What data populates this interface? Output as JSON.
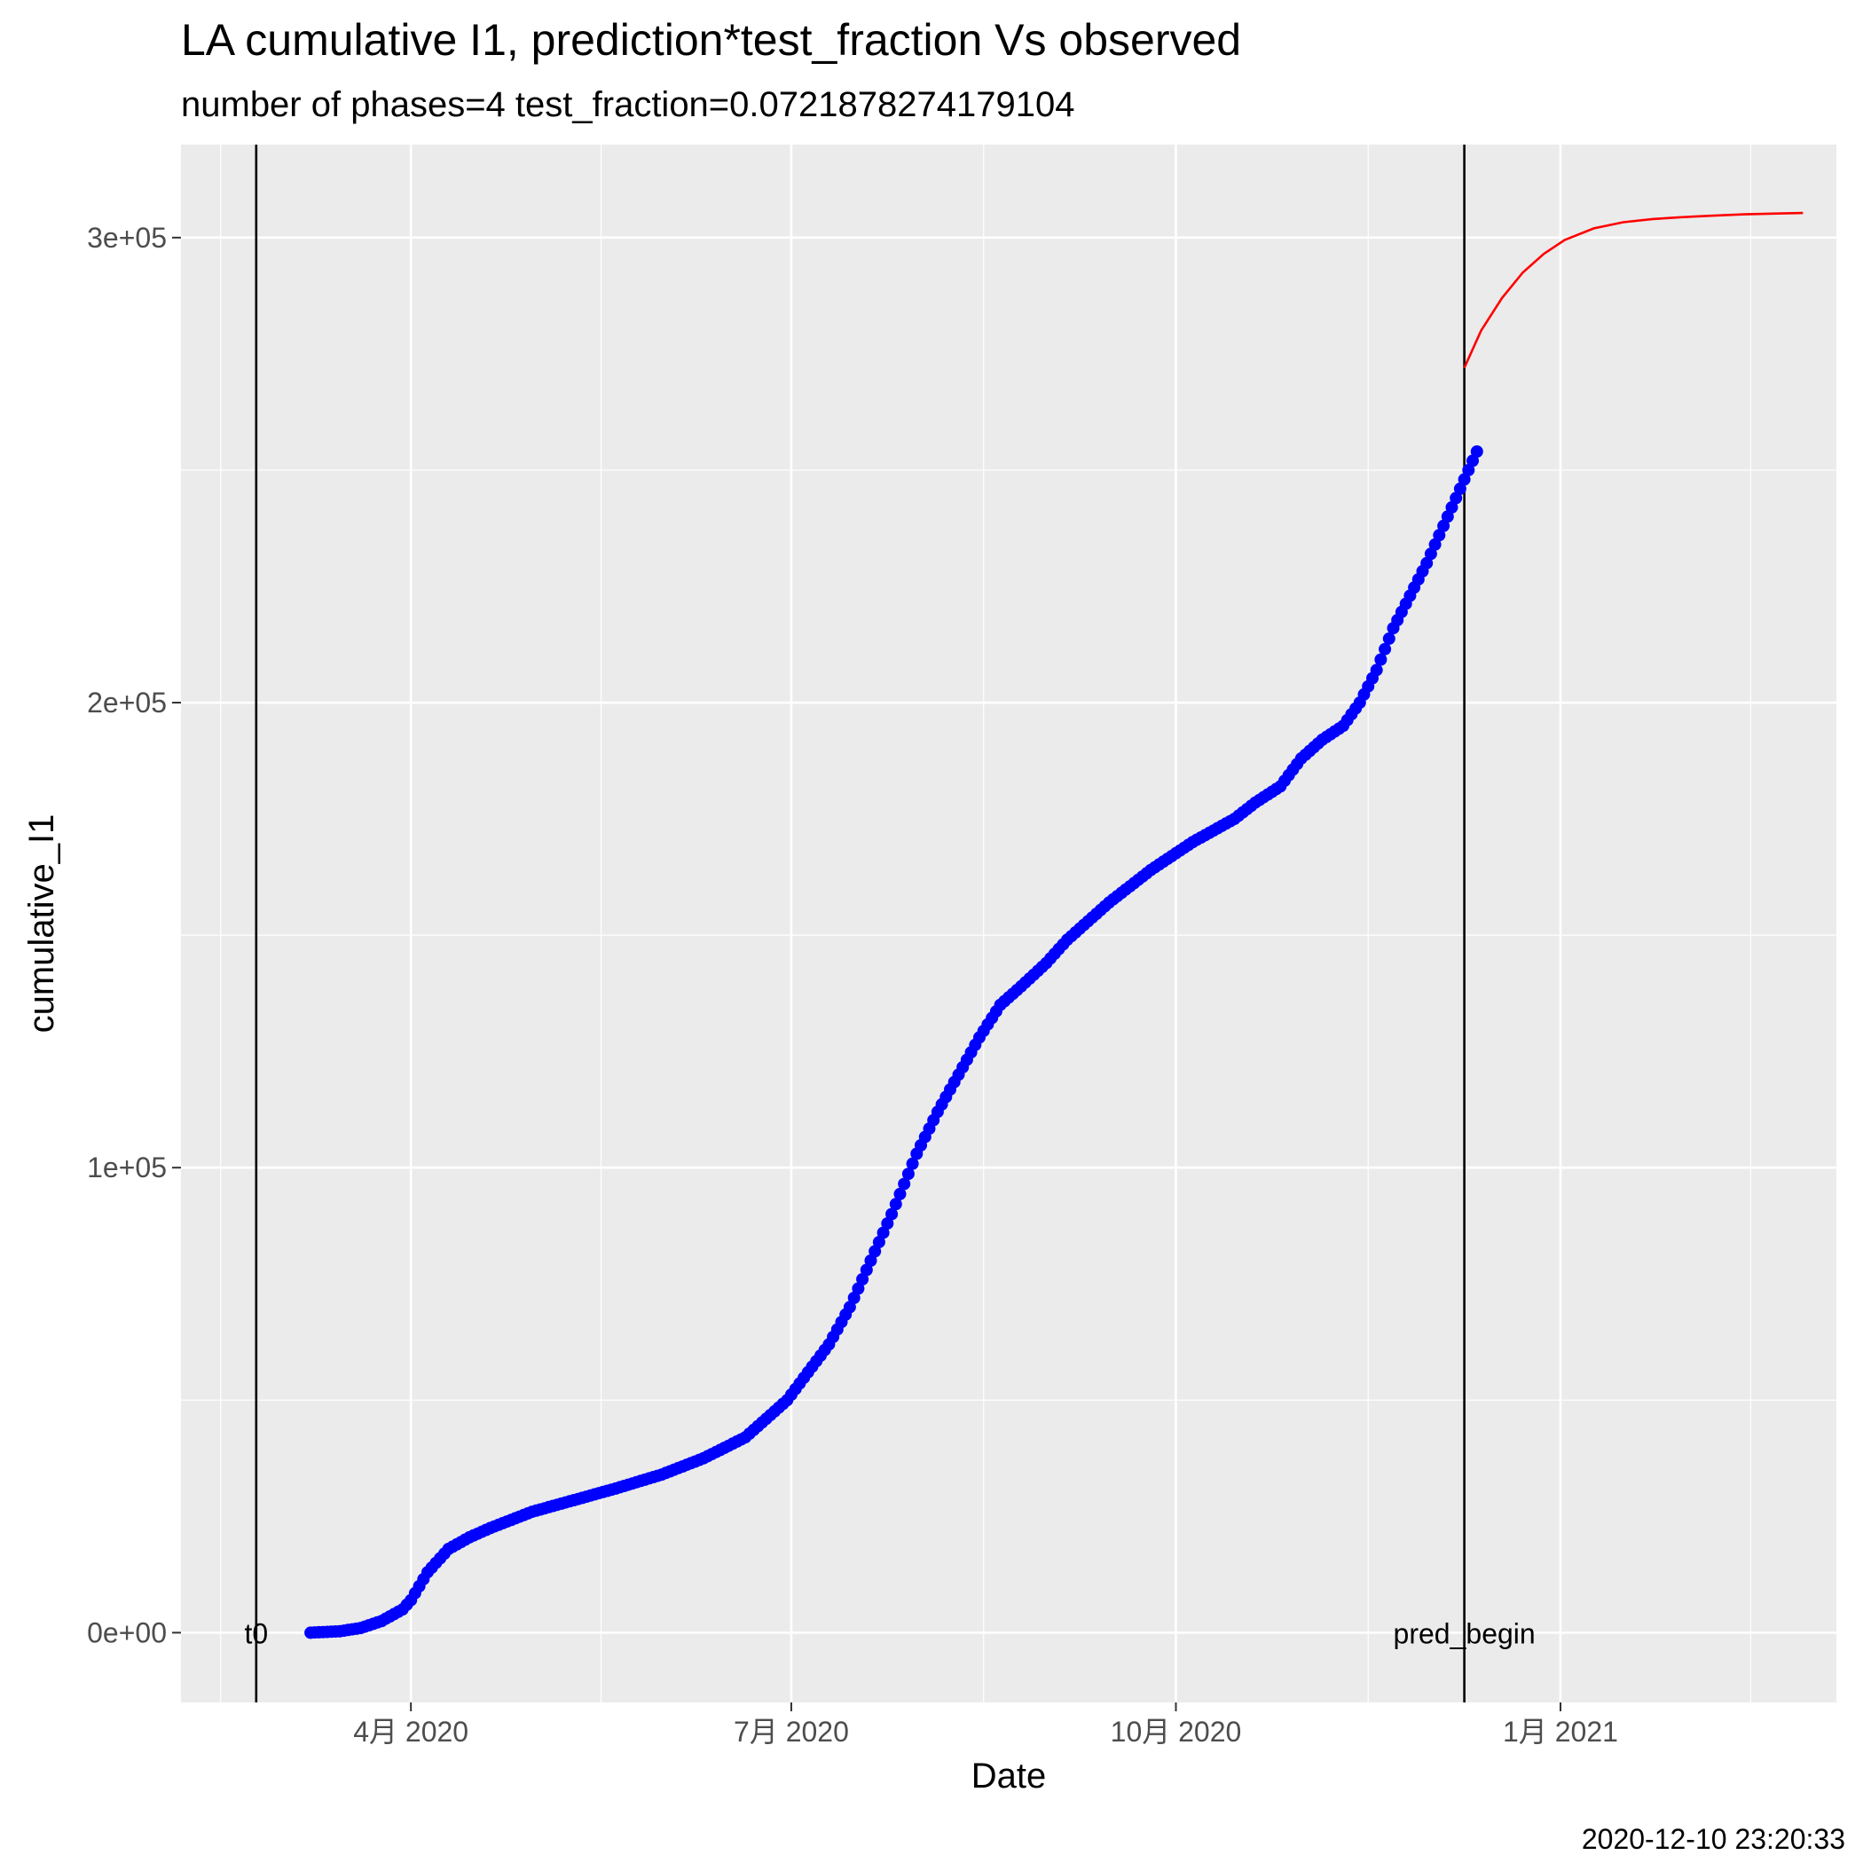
{
  "chart_data": {
    "type": "scatter",
    "title": "LA cumulative I1,  prediction*test_fraction Vs observed",
    "subtitle": "number of phases=4   test_fraction=0.0721878274179104",
    "xlabel": "Date",
    "ylabel": "cumulative_I1",
    "caption": "2020-12-10 23:20:33",
    "xlim": [
      "2020-02-06",
      "2021-03-08"
    ],
    "ylim": [
      -15000,
      320000
    ],
    "grid": true,
    "x_ticks": [
      {
        "date": "2020-04-01",
        "label": "4月 2020"
      },
      {
        "date": "2020-07-01",
        "label": "7月 2020"
      },
      {
        "date": "2020-10-01",
        "label": "10月 2020"
      },
      {
        "date": "2021-01-01",
        "label": "1月 2021"
      }
    ],
    "y_ticks": [
      {
        "value": 0,
        "label": "0e+00"
      },
      {
        "value": 100000,
        "label": "1e+05"
      },
      {
        "value": 200000,
        "label": "2e+05"
      },
      {
        "value": 300000,
        "label": "3e+05"
      }
    ],
    "vertical_lines": [
      {
        "date": "2020-02-24",
        "label": "t0",
        "color": "#000000"
      },
      {
        "date": "2020-12-09",
        "label": "pred_begin",
        "color": "#000000"
      }
    ],
    "series": [
      {
        "type": "scatter",
        "color": "#0000ff",
        "points": [
          [
            "2020-03-08",
            0
          ],
          [
            "2020-03-15",
            300
          ],
          [
            "2020-03-20",
            1000
          ],
          [
            "2020-03-25",
            2500
          ],
          [
            "2020-03-30",
            5000
          ],
          [
            "2020-04-01",
            7000
          ],
          [
            "2020-04-05",
            13000
          ],
          [
            "2020-04-10",
            18000
          ],
          [
            "2020-04-15",
            20500
          ],
          [
            "2020-04-20",
            22500
          ],
          [
            "2020-04-30",
            26000
          ],
          [
            "2020-05-10",
            28500
          ],
          [
            "2020-05-20",
            31000
          ],
          [
            "2020-05-31",
            34000
          ],
          [
            "2020-06-10",
            37500
          ],
          [
            "2020-06-20",
            42000
          ],
          [
            "2020-06-25",
            46000
          ],
          [
            "2020-06-30",
            50000
          ],
          [
            "2020-07-05",
            56000
          ],
          [
            "2020-07-10",
            62000
          ],
          [
            "2020-07-15",
            70000
          ],
          [
            "2020-07-20",
            80000
          ],
          [
            "2020-07-25",
            90000
          ],
          [
            "2020-07-31",
            103000
          ],
          [
            "2020-08-05",
            112000
          ],
          [
            "2020-08-10",
            120000
          ],
          [
            "2020-08-15",
            128000
          ],
          [
            "2020-08-20",
            135000
          ],
          [
            "2020-08-25",
            139000
          ],
          [
            "2020-08-31",
            144000
          ],
          [
            "2020-09-05",
            149000
          ],
          [
            "2020-09-10",
            153000
          ],
          [
            "2020-09-15",
            157000
          ],
          [
            "2020-09-20",
            160500
          ],
          [
            "2020-09-25",
            164000
          ],
          [
            "2020-09-30",
            167000
          ],
          [
            "2020-10-05",
            170000
          ],
          [
            "2020-10-10",
            172500
          ],
          [
            "2020-10-15",
            175000
          ],
          [
            "2020-10-20",
            178500
          ],
          [
            "2020-10-26",
            182000
          ],
          [
            "2020-10-31",
            188000
          ],
          [
            "2020-11-05",
            192000
          ],
          [
            "2020-11-10",
            195000
          ],
          [
            "2020-11-14",
            200000
          ],
          [
            "2020-11-18",
            207000
          ],
          [
            "2020-11-22",
            216000
          ],
          [
            "2020-11-26",
            223000
          ],
          [
            "2020-11-30",
            230000
          ],
          [
            "2020-12-03",
            236000
          ],
          [
            "2020-12-06",
            242000
          ],
          [
            "2020-12-09",
            248000
          ],
          [
            "2020-12-12",
            254000
          ]
        ]
      },
      {
        "type": "line",
        "color": "#ff0000",
        "points": [
          [
            "2020-12-09",
            272000
          ],
          [
            "2020-12-13",
            280000
          ],
          [
            "2020-12-18",
            287000
          ],
          [
            "2020-12-23",
            292500
          ],
          [
            "2020-12-28",
            296500
          ],
          [
            "2021-01-02",
            299500
          ],
          [
            "2021-01-09",
            302000
          ],
          [
            "2021-01-16",
            303300
          ],
          [
            "2021-01-23",
            304000
          ],
          [
            "2021-01-30",
            304400
          ],
          [
            "2021-02-06",
            304700
          ],
          [
            "2021-02-14",
            305000
          ],
          [
            "2021-02-23",
            305200
          ],
          [
            "2021-02-28",
            305300
          ]
        ]
      }
    ]
  }
}
